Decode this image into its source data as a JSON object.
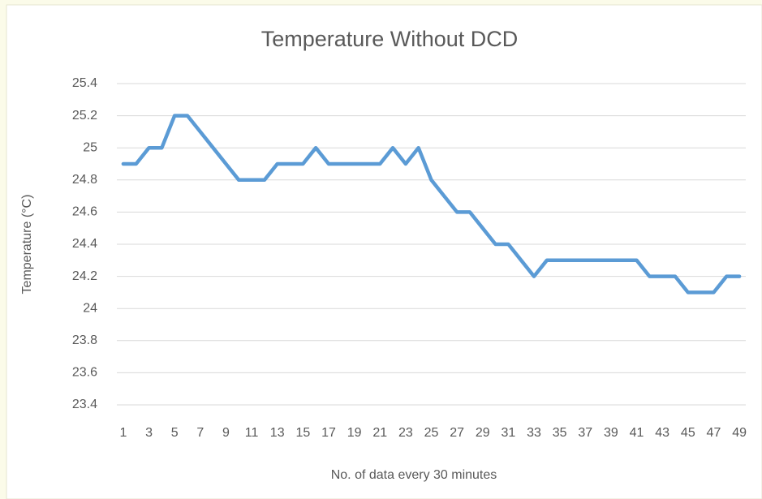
{
  "chart_data": {
    "type": "line",
    "title": "Temperature Without DCD",
    "x_label": "No. of data every 30 minutes",
    "y_label": "Temperature (°C)",
    "categories": [
      "1",
      null,
      "3",
      null,
      "5",
      null,
      "7",
      null,
      "9",
      null,
      "11",
      null,
      "13",
      null,
      "15",
      null,
      "17",
      null,
      "19",
      null,
      "21",
      null,
      "23",
      null,
      "25",
      null,
      "27",
      null,
      "29",
      null,
      "31",
      null,
      "33",
      null,
      "35",
      null,
      "37",
      null,
      "39",
      null,
      "41",
      null,
      "43",
      null,
      "45",
      null,
      "47",
      null,
      "49"
    ],
    "series": [
      {
        "name": "Temperature",
        "color": "#5b9bd5",
        "values": [
          24.9,
          24.9,
          25.0,
          25.0,
          25.2,
          25.2,
          25.1,
          25.0,
          24.9,
          24.8,
          24.8,
          24.8,
          24.9,
          24.9,
          24.9,
          25.0,
          24.9,
          24.9,
          24.9,
          24.9,
          24.9,
          25.0,
          24.9,
          25.0,
          24.8,
          24.7,
          24.6,
          24.6,
          24.5,
          24.4,
          24.4,
          24.3,
          24.2,
          24.3,
          24.3,
          24.3,
          24.3,
          24.3,
          24.3,
          24.3,
          24.3,
          24.2,
          24.2,
          24.2,
          24.1,
          24.1,
          24.1,
          24.2,
          24.2
        ]
      }
    ],
    "ylim": [
      23.4,
      25.4
    ],
    "yticks": [
      23.4,
      23.6,
      23.8,
      24,
      24.2,
      24.4,
      24.6,
      24.8,
      25,
      25.2,
      25.4
    ],
    "grid": true
  }
}
